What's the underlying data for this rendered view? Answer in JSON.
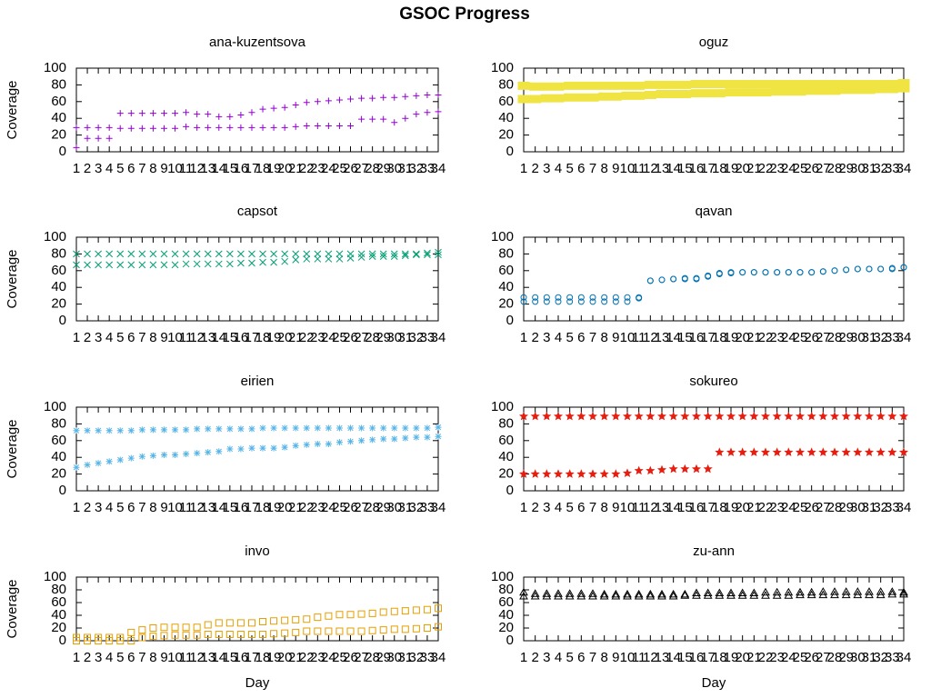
{
  "title": "GSOC Progress",
  "chart_data": [
    {
      "type": "scatter",
      "title": "ana-kuzentsova",
      "ylabel": "Coverage",
      "x": [
        1,
        2,
        3,
        4,
        5,
        6,
        7,
        8,
        9,
        10,
        11,
        12,
        13,
        14,
        15,
        16,
        17,
        18,
        19,
        20,
        21,
        22,
        23,
        24,
        25,
        26,
        27,
        28,
        29,
        30,
        31,
        32,
        33,
        34
      ],
      "xlim": [
        1,
        34
      ],
      "xticks": [
        1,
        2,
        3,
        4,
        5,
        6,
        7,
        8,
        9,
        10,
        11,
        12,
        13,
        14,
        15,
        16,
        17,
        18,
        19,
        20,
        21,
        22,
        23,
        24,
        25,
        26,
        27,
        28,
        29,
        30,
        31,
        32,
        33,
        34
      ],
      "ylim": [
        0,
        100
      ],
      "yticks": [
        0,
        20,
        40,
        60,
        80,
        100
      ],
      "series": [
        {
          "color": "#9400d3",
          "marker": "plus",
          "values": [
            29,
            29,
            29,
            29,
            46,
            46,
            46,
            46,
            46,
            46,
            47,
            45,
            45,
            42,
            42,
            44,
            47,
            51,
            52,
            53,
            56,
            59,
            60,
            61,
            62,
            63,
            64,
            64,
            65,
            65,
            66,
            67,
            68,
            68
          ]
        },
        {
          "color": "#9400d3",
          "marker": "plus",
          "values": [
            5,
            16,
            16,
            16,
            28,
            28,
            28,
            28,
            28,
            28,
            30,
            29,
            29,
            29,
            29,
            29,
            29,
            29,
            29,
            29,
            30,
            31,
            31,
            31,
            31,
            31,
            39,
            39,
            39,
            35,
            40,
            45,
            47,
            48
          ]
        }
      ]
    },
    {
      "type": "scatter",
      "title": "oguz",
      "x": [
        1,
        2,
        3,
        4,
        5,
        6,
        7,
        8,
        9,
        10,
        11,
        12,
        13,
        14,
        15,
        16,
        17,
        18,
        19,
        20,
        21,
        22,
        23,
        24,
        25,
        26,
        27,
        28,
        29,
        30,
        31,
        32,
        33,
        34
      ],
      "xlim": [
        1,
        34
      ],
      "xticks": [
        1,
        2,
        3,
        4,
        5,
        6,
        7,
        8,
        9,
        10,
        11,
        12,
        13,
        14,
        15,
        16,
        17,
        18,
        19,
        20,
        21,
        22,
        23,
        24,
        25,
        26,
        27,
        28,
        29,
        30,
        31,
        32,
        33,
        34
      ],
      "ylim": [
        0,
        100
      ],
      "yticks": [
        0,
        20,
        40,
        60,
        80,
        100
      ],
      "series": [
        {
          "color": "#f0e442",
          "marker": "filled-square",
          "values": [
            79,
            78,
            78,
            78,
            79,
            79,
            79,
            79,
            79,
            79,
            79,
            80,
            80,
            80,
            80,
            81,
            81,
            81,
            81,
            81,
            81,
            81,
            81,
            81,
            81,
            81,
            81,
            81,
            81,
            81,
            81,
            81,
            81,
            82
          ]
        },
        {
          "color": "#f0e442",
          "marker": "filled-square",
          "values": [
            63,
            63,
            64,
            64,
            65,
            65,
            65,
            66,
            66,
            67,
            67,
            68,
            69,
            69,
            69,
            70,
            70,
            70,
            71,
            71,
            71,
            71,
            72,
            72,
            72,
            73,
            73,
            73,
            74,
            74,
            74,
            75,
            75,
            76
          ]
        }
      ]
    },
    {
      "type": "scatter",
      "title": "capsot",
      "ylabel": "Coverage",
      "x": [
        1,
        2,
        3,
        4,
        5,
        6,
        7,
        8,
        9,
        10,
        11,
        12,
        13,
        14,
        15,
        16,
        17,
        18,
        19,
        20,
        21,
        22,
        23,
        24,
        25,
        26,
        27,
        28,
        29,
        30,
        31,
        32,
        33,
        34
      ],
      "xlim": [
        1,
        34
      ],
      "xticks": [
        1,
        2,
        3,
        4,
        5,
        6,
        7,
        8,
        9,
        10,
        11,
        12,
        13,
        14,
        15,
        16,
        17,
        18,
        19,
        20,
        21,
        22,
        23,
        24,
        25,
        26,
        27,
        28,
        29,
        30,
        31,
        32,
        33,
        34
      ],
      "ylim": [
        0,
        100
      ],
      "yticks": [
        0,
        20,
        40,
        60,
        80,
        100
      ],
      "series": [
        {
          "color": "#009e73",
          "marker": "cross",
          "values": [
            80,
            80,
            80,
            80,
            80,
            80,
            80,
            80,
            80,
            80,
            80,
            80,
            80,
            80,
            80,
            80,
            80,
            80,
            80,
            80,
            80,
            80,
            80,
            80,
            80,
            80,
            80,
            80,
            80,
            80,
            80,
            80,
            81,
            82
          ]
        },
        {
          "color": "#009e73",
          "marker": "cross",
          "values": [
            67,
            67,
            67,
            67,
            67,
            67,
            67,
            67,
            67,
            67,
            68,
            68,
            68,
            68,
            68,
            69,
            69,
            70,
            70,
            71,
            73,
            74,
            74,
            74,
            74,
            75,
            76,
            77,
            77,
            77,
            78,
            79,
            79,
            79
          ]
        }
      ]
    },
    {
      "type": "scatter",
      "title": "qavan",
      "x": [
        1,
        2,
        3,
        4,
        5,
        6,
        7,
        8,
        9,
        10,
        11,
        12,
        13,
        14,
        15,
        16,
        17,
        18,
        19,
        20,
        21,
        22,
        23,
        24,
        25,
        26,
        27,
        28,
        29,
        30,
        31,
        32,
        33,
        34
      ],
      "xlim": [
        1,
        34
      ],
      "xticks": [
        1,
        2,
        3,
        4,
        5,
        6,
        7,
        8,
        9,
        10,
        11,
        12,
        13,
        14,
        15,
        16,
        17,
        18,
        19,
        20,
        21,
        22,
        23,
        24,
        25,
        26,
        27,
        28,
        29,
        30,
        31,
        32,
        33,
        34
      ],
      "ylim": [
        0,
        100
      ],
      "yticks": [
        0,
        20,
        40,
        60,
        80,
        100
      ],
      "series": [
        {
          "color": "#0072b2",
          "marker": "circle",
          "values": [
            28,
            28,
            28,
            28,
            28,
            28,
            28,
            28,
            28,
            28,
            28,
            48,
            49,
            50,
            50,
            50,
            53,
            56,
            58,
            58,
            58,
            58,
            58,
            58,
            58,
            58,
            59,
            60,
            61,
            62,
            62,
            62,
            63,
            64
          ]
        },
        {
          "color": "#0072b2",
          "marker": "circle",
          "values": [
            23,
            23,
            23,
            23,
            23,
            23,
            23,
            23,
            23,
            23,
            27,
            48,
            49,
            50,
            51,
            51,
            54,
            57,
            57,
            58,
            58,
            58,
            58,
            58,
            58,
            58,
            59,
            60,
            61,
            62,
            62,
            62,
            62,
            64
          ]
        }
      ]
    },
    {
      "type": "scatter",
      "title": "eirien",
      "ylabel": "Coverage",
      "x": [
        1,
        2,
        3,
        4,
        5,
        6,
        7,
        8,
        9,
        10,
        11,
        12,
        13,
        14,
        15,
        16,
        17,
        18,
        19,
        20,
        21,
        22,
        23,
        24,
        25,
        26,
        27,
        28,
        29,
        30,
        31,
        32,
        33,
        34
      ],
      "xlim": [
        1,
        34
      ],
      "xticks": [
        1,
        2,
        3,
        4,
        5,
        6,
        7,
        8,
        9,
        10,
        11,
        12,
        13,
        14,
        15,
        16,
        17,
        18,
        19,
        20,
        21,
        22,
        23,
        24,
        25,
        26,
        27,
        28,
        29,
        30,
        31,
        32,
        33,
        34
      ],
      "ylim": [
        0,
        100
      ],
      "yticks": [
        0,
        20,
        40,
        60,
        80,
        100
      ],
      "series": [
        {
          "color": "#56b4e9",
          "marker": "star",
          "values": [
            72,
            72,
            72,
            72,
            72,
            72,
            73,
            73,
            73,
            73,
            73,
            74,
            74,
            74,
            74,
            74,
            74,
            75,
            75,
            75,
            75,
            75,
            75,
            75,
            75,
            75,
            75,
            75,
            75,
            75,
            75,
            75,
            75,
            76
          ]
        },
        {
          "color": "#56b4e9",
          "marker": "star",
          "values": [
            28,
            31,
            33,
            35,
            37,
            39,
            41,
            42,
            43,
            43,
            44,
            45,
            46,
            47,
            50,
            50,
            51,
            51,
            51,
            52,
            54,
            55,
            56,
            56,
            58,
            59,
            60,
            61,
            62,
            62,
            63,
            64,
            64,
            65
          ]
        }
      ]
    },
    {
      "type": "scatter",
      "title": "sokureo",
      "x": [
        1,
        2,
        3,
        4,
        5,
        6,
        7,
        8,
        9,
        10,
        11,
        12,
        13,
        14,
        15,
        16,
        17,
        18,
        19,
        20,
        21,
        22,
        23,
        24,
        25,
        26,
        27,
        28,
        29,
        30,
        31,
        32,
        33,
        34
      ],
      "xlim": [
        1,
        34
      ],
      "xticks": [
        1,
        2,
        3,
        4,
        5,
        6,
        7,
        8,
        9,
        10,
        11,
        12,
        13,
        14,
        15,
        16,
        17,
        18,
        19,
        20,
        21,
        22,
        23,
        24,
        25,
        26,
        27,
        28,
        29,
        30,
        31,
        32,
        33,
        34
      ],
      "ylim": [
        0,
        100
      ],
      "yticks": [
        0,
        20,
        40,
        60,
        80,
        100
      ],
      "series": [
        {
          "color": "#e51e10",
          "marker": "filled-star",
          "values": [
            89,
            89,
            89,
            89,
            89,
            89,
            89,
            89,
            89,
            89,
            89,
            89,
            89,
            89,
            89,
            89,
            89,
            89,
            89,
            89,
            89,
            89,
            89,
            89,
            89,
            89,
            89,
            89,
            89,
            89,
            89,
            89,
            89,
            89
          ]
        },
        {
          "color": "#e51e10",
          "marker": "filled-star",
          "values": [
            20,
            20,
            20,
            20,
            20,
            20,
            20,
            20,
            20,
            21,
            24,
            24,
            25,
            26,
            26,
            26,
            26,
            46,
            46,
            46,
            46,
            46,
            46,
            46,
            46,
            46,
            46,
            46,
            46,
            46,
            46,
            46,
            46,
            46
          ]
        }
      ]
    },
    {
      "type": "scatter",
      "title": "invo",
      "ylabel": "Coverage",
      "xlabel": "Day",
      "x": [
        1,
        2,
        3,
        4,
        5,
        6,
        7,
        8,
        9,
        10,
        11,
        12,
        13,
        14,
        15,
        16,
        17,
        18,
        19,
        20,
        21,
        22,
        23,
        24,
        25,
        26,
        27,
        28,
        29,
        30,
        31,
        32,
        33,
        34
      ],
      "xlim": [
        1,
        34
      ],
      "xticks": [
        1,
        2,
        3,
        4,
        5,
        6,
        7,
        8,
        9,
        10,
        11,
        12,
        13,
        14,
        15,
        16,
        17,
        18,
        19,
        20,
        21,
        22,
        23,
        24,
        25,
        26,
        27,
        28,
        29,
        30,
        31,
        32,
        33,
        34
      ],
      "ylim": [
        0,
        100
      ],
      "yticks": [
        0,
        20,
        40,
        60,
        80,
        100
      ],
      "series": [
        {
          "color": "#e69f00",
          "marker": "open-square",
          "values": [
            5,
            5,
            5,
            5,
            5,
            13,
            17,
            20,
            21,
            21,
            21,
            21,
            25,
            28,
            28,
            28,
            28,
            30,
            31,
            32,
            33,
            34,
            37,
            39,
            41,
            41,
            42,
            43,
            45,
            46,
            47,
            48,
            49,
            51
          ]
        },
        {
          "color": "#e69f00",
          "marker": "open-square",
          "values": [
            0,
            0,
            0,
            0,
            0,
            0,
            5,
            7,
            8,
            9,
            9,
            9,
            10,
            10,
            10,
            10,
            10,
            10,
            11,
            12,
            13,
            15,
            15,
            15,
            15,
            15,
            15,
            16,
            17,
            18,
            18,
            19,
            20,
            22
          ]
        }
      ]
    },
    {
      "type": "scatter",
      "title": "zu-ann",
      "xlabel": "Day",
      "x": [
        1,
        2,
        3,
        4,
        5,
        6,
        7,
        8,
        9,
        10,
        11,
        12,
        13,
        14,
        15,
        16,
        17,
        18,
        19,
        20,
        21,
        22,
        23,
        24,
        25,
        26,
        27,
        28,
        29,
        30,
        31,
        32,
        33,
        34
      ],
      "xlim": [
        1,
        34
      ],
      "xticks": [
        1,
        2,
        3,
        4,
        5,
        6,
        7,
        8,
        9,
        10,
        11,
        12,
        13,
        14,
        15,
        16,
        17,
        18,
        19,
        20,
        21,
        22,
        23,
        24,
        25,
        26,
        27,
        28,
        29,
        30,
        31,
        32,
        33,
        34
      ],
      "ylim": [
        0,
        100
      ],
      "yticks": [
        0,
        20,
        40,
        60,
        80,
        100
      ],
      "series": [
        {
          "color": "#000000",
          "marker": "triangle",
          "values": [
            76,
            74,
            74,
            74,
            74,
            74,
            74,
            73,
            73,
            73,
            73,
            73,
            73,
            73,
            73,
            75,
            75,
            75,
            75,
            75,
            75,
            76,
            76,
            76,
            76,
            76,
            77,
            77,
            77,
            77,
            77,
            77,
            77,
            76
          ]
        },
        {
          "color": "#000000",
          "marker": "triangle",
          "values": [
            70,
            70,
            70,
            70,
            70,
            70,
            70,
            70,
            70,
            70,
            70,
            70,
            70,
            70,
            71,
            71,
            71,
            71,
            71,
            71,
            71,
            71,
            71,
            71,
            72,
            72,
            72,
            72,
            72,
            72,
            72,
            72,
            73,
            73
          ]
        }
      ]
    }
  ]
}
